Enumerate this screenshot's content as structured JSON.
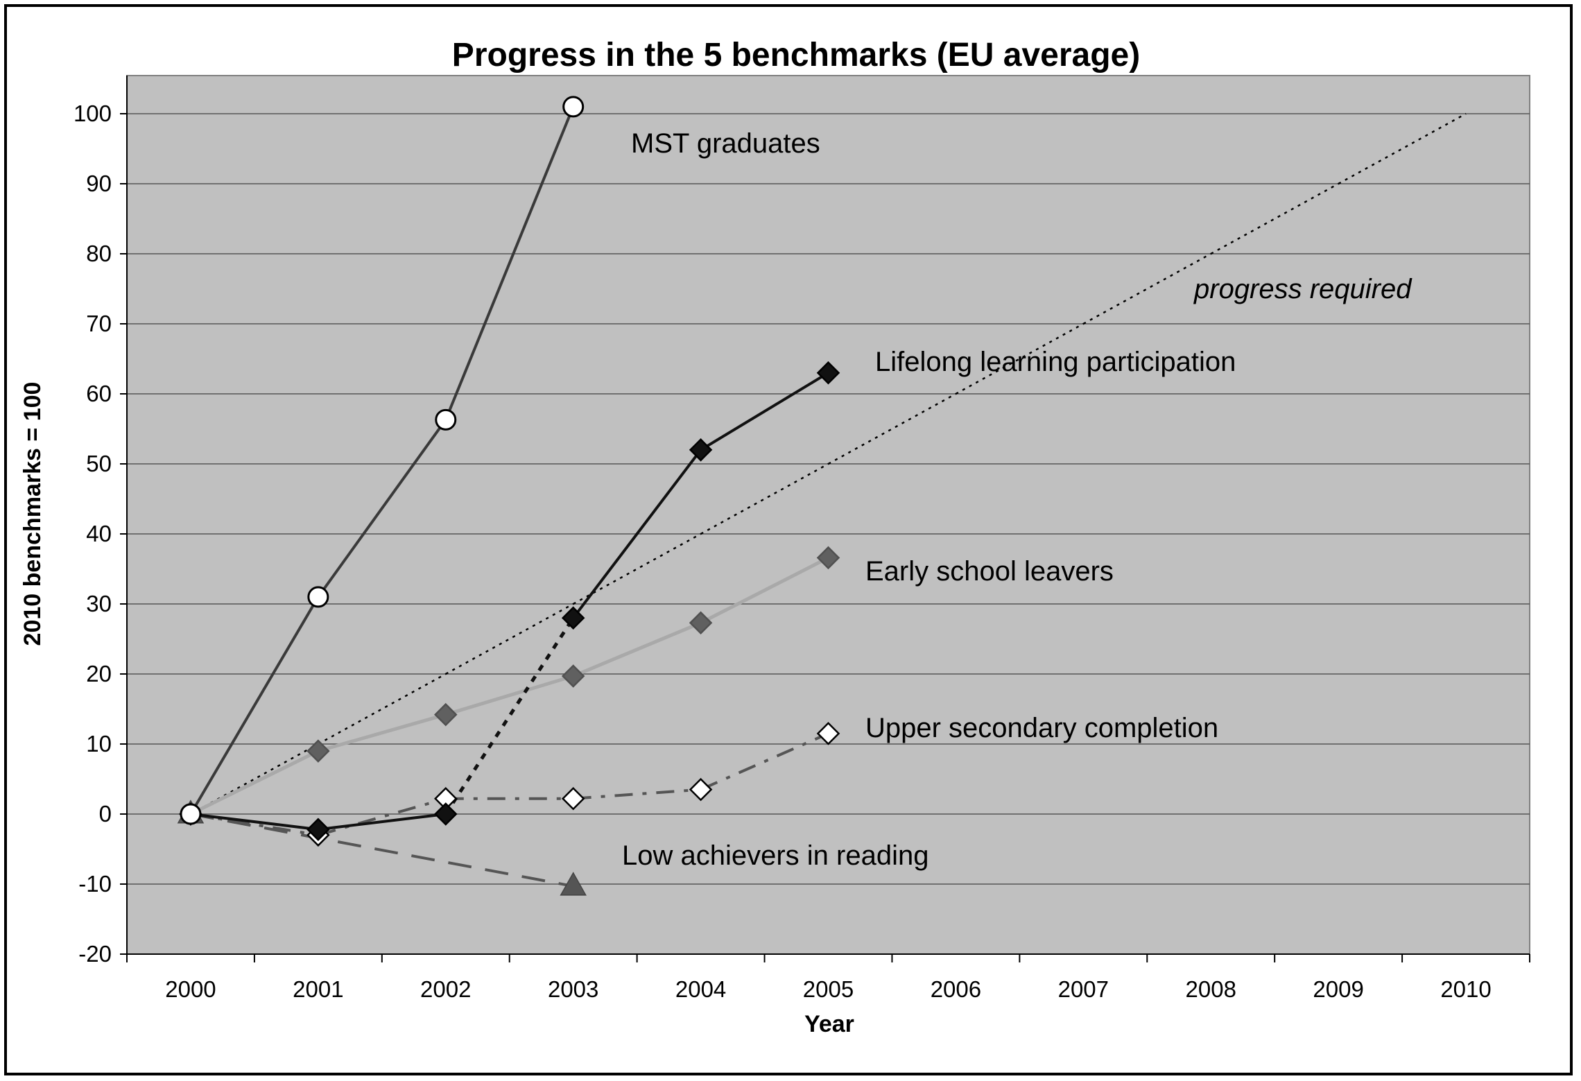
{
  "chart_data": {
    "type": "line",
    "title": "Progress in the 5 benchmarks (EU average)",
    "xlabel": "Year",
    "ylabel": "2010 benchmarks = 100",
    "x": [
      "2000",
      "2001",
      "2002",
      "2003",
      "2004",
      "2005",
      "2006",
      "2007",
      "2008",
      "2009",
      "2010"
    ],
    "y_ticks": [
      "100",
      "90",
      "80",
      "70",
      "60",
      "50",
      "40",
      "30",
      "20",
      "10",
      "0",
      "-10",
      "-20"
    ],
    "ylim": [
      -20,
      100
    ],
    "grid": true,
    "plot_background": "#c0c0c0",
    "series": [
      {
        "name": "MST graduates",
        "values": [
          0,
          31,
          56.3,
          101,
          null,
          null,
          null,
          null,
          null,
          null,
          null
        ],
        "color": "#3a3a3a",
        "marker": "circle-open",
        "dash": "solid"
      },
      {
        "name": "Lifelong learning participation",
        "values": [
          0,
          -2.2,
          0,
          28,
          52,
          63,
          null,
          null,
          null,
          null,
          null
        ],
        "color": "#111111",
        "marker": "diamond-filled",
        "dash": "solid",
        "dotted_segment": [
          2,
          3
        ]
      },
      {
        "name": "Early school leavers",
        "values": [
          0,
          9,
          14.2,
          19.7,
          27.3,
          36.6,
          null,
          null,
          null,
          null,
          null
        ],
        "color": "#a9a9a9",
        "marker": "diamond-gray",
        "dash": "solid"
      },
      {
        "name": "Upper secondary completion",
        "values": [
          0,
          -3,
          2.2,
          2.2,
          3.5,
          11.5,
          null,
          null,
          null,
          null,
          null
        ],
        "color": "#555555",
        "marker": "diamond-open",
        "dash": "dashdot"
      },
      {
        "name": "Low achievers in reading",
        "values": [
          0,
          null,
          null,
          -10.3,
          null,
          null,
          null,
          null,
          null,
          null,
          null
        ],
        "color": "#555555",
        "marker": "triangle-filled",
        "dash": "dashed"
      },
      {
        "name": "progress required",
        "values": [
          0,
          10,
          20,
          30,
          40,
          50,
          60,
          70,
          80,
          90,
          100
        ],
        "color": "#000000",
        "marker": "none",
        "dash": "dotted"
      }
    ],
    "annotations": [
      "MST graduates",
      "progress required",
      "Lifelong learning participation",
      "Early school leavers",
      "Upper secondary completion",
      "Low achievers in reading"
    ]
  }
}
